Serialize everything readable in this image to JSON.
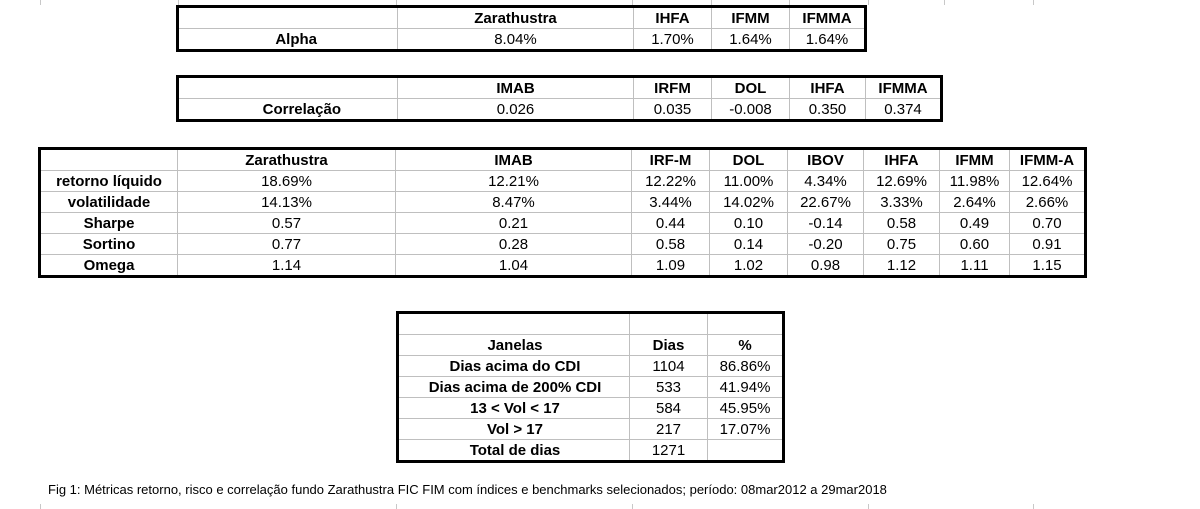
{
  "alpha_table": {
    "headers": [
      "",
      "Zarathustra",
      "IHFA",
      "IFMM",
      "IFMMA"
    ],
    "row": [
      "Alpha",
      "8.04%",
      "1.70%",
      "1.64%",
      "1.64%"
    ]
  },
  "correlation_table": {
    "headers": [
      "",
      "IMAB",
      "IRFM",
      "DOL",
      "IHFA",
      "IFMMA"
    ],
    "row": [
      "Correlação",
      "0.026",
      "0.035",
      "-0.008",
      "0.350",
      "0.374"
    ]
  },
  "metrics_table": {
    "headers": [
      "",
      "Zarathustra",
      "IMAB",
      "IRF-M",
      "DOL",
      "IBOV",
      "IHFA",
      "IFMM",
      "IFMM-A"
    ],
    "rows": [
      [
        "retorno líquido",
        "18.69%",
        "12.21%",
        "12.22%",
        "11.00%",
        "4.34%",
        "12.69%",
        "11.98%",
        "12.64%"
      ],
      [
        "volatilidade",
        "14.13%",
        "8.47%",
        "3.44%",
        "14.02%",
        "22.67%",
        "3.33%",
        "2.64%",
        "2.66%"
      ],
      [
        "Sharpe",
        "0.57",
        "0.21",
        "0.44",
        "0.10",
        "-0.14",
        "0.58",
        "0.49",
        "0.70"
      ],
      [
        "Sortino",
        "0.77",
        "0.28",
        "0.58",
        "0.14",
        "-0.20",
        "0.75",
        "0.60",
        "0.91"
      ],
      [
        "Omega",
        "1.14",
        "1.04",
        "1.09",
        "1.02",
        "0.98",
        "1.12",
        "1.11",
        "1.15"
      ]
    ]
  },
  "windows_table": {
    "headers": [
      "Janelas",
      "Dias",
      "%"
    ],
    "rows": [
      [
        "Dias acima do CDI",
        "1104",
        "86.86%"
      ],
      [
        "Dias acima de 200% CDI",
        "533",
        "41.94%"
      ],
      [
        "13 < Vol < 17",
        "584",
        "45.95%"
      ],
      [
        "Vol > 17",
        "217",
        "17.07%"
      ],
      [
        "Total de dias",
        "1271",
        ""
      ]
    ]
  },
  "caption": "Fig 1: Métricas retorno, risco e correlação fundo Zarathustra FIC FIM com índices e benchmarks selecionados; período: 08mar2012 a 29mar2018"
}
